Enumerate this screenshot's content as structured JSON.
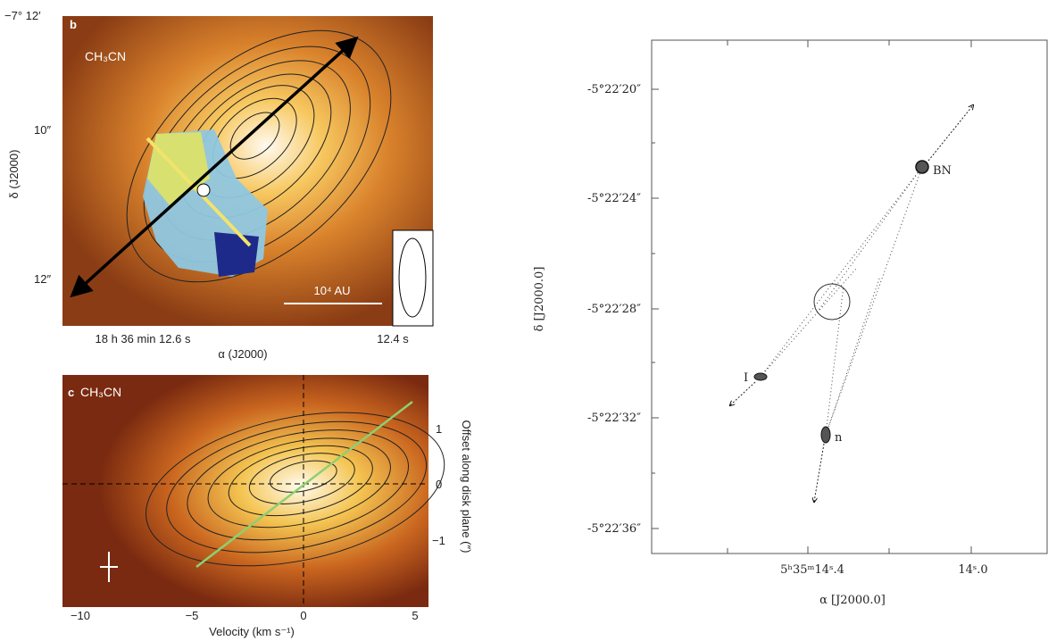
{
  "panel_b": {
    "label": "b",
    "molecule": "CH₃CN",
    "y_ticks": [
      "−7° 12′",
      "10″",
      "12″"
    ],
    "y_label": "δ (J2000)",
    "x_ticks": [
      "18 h 36 min 12.6 s",
      "12.4 s"
    ],
    "x_label": "α (J2000)",
    "scale_bar": "10⁴ AU"
  },
  "panel_c": {
    "label": "c",
    "molecule": "CH₃CN",
    "x_ticks": [
      "−10",
      "−5",
      "0",
      "5"
    ],
    "y_ticks": [
      "1",
      "0",
      "−1"
    ],
    "x_label": "Velocity (km s⁻¹)",
    "y_label": "Offset along disk plane (″)"
  },
  "panel_right": {
    "y_ticks": [
      "-5°22′20″",
      "-5°22′24″",
      "-5°22′28″",
      "-5°22′32″",
      "-5°22′36″"
    ],
    "x_ticks": [
      "5ʰ35ᵐ14ˢ.4",
      "14ˢ.0"
    ],
    "x_label": "α [J2000.0]",
    "y_label": "δ [J2000.0]",
    "sources": [
      "BN",
      "I",
      "n"
    ]
  }
}
